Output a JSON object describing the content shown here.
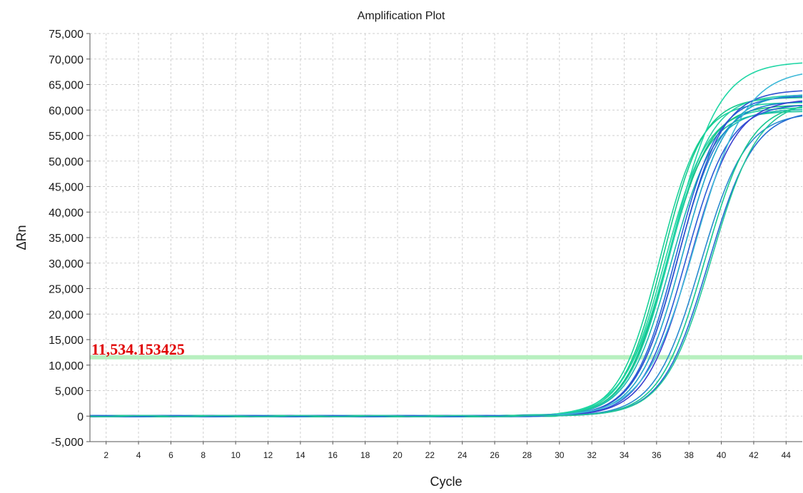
{
  "chart_data": {
    "type": "line",
    "title": "Amplification Plot",
    "xlabel": "Cycle",
    "ylabel": "ΔRn",
    "xlim": [
      1,
      45
    ],
    "ylim": [
      -5000,
      75000
    ],
    "x_ticks": [
      2,
      4,
      6,
      8,
      10,
      12,
      14,
      16,
      18,
      20,
      22,
      24,
      26,
      28,
      30,
      32,
      34,
      36,
      38,
      40,
      42,
      44
    ],
    "x_tick_labels": [
      "2",
      "4",
      "6",
      "8",
      "10",
      "12",
      "14",
      "16",
      "18",
      "20",
      "22",
      "24",
      "26",
      "28",
      "30",
      "32",
      "34",
      "36",
      "38",
      "40",
      "42",
      "44"
    ],
    "y_ticks": [
      -5000,
      0,
      5000,
      10000,
      15000,
      20000,
      25000,
      30000,
      35000,
      40000,
      45000,
      50000,
      55000,
      60000,
      65000,
      70000,
      75000
    ],
    "y_tick_labels": [
      "-5,000",
      "0",
      "5,000",
      "10,000",
      "15,000",
      "20,000",
      "25,000",
      "30,000",
      "35,000",
      "40,000",
      "45,000",
      "50,000",
      "55,000",
      "60,000",
      "65,000",
      "70,000",
      "75,000"
    ],
    "grid": true,
    "threshold": {
      "value": 11534.153425,
      "label": "11,534.153425",
      "color": "#b8f0c0",
      "label_color": "#e00000"
    },
    "curve_model": "sigmoid ΔRn = plateau / (1 + exp(-(cycle - midpoint) / slope))",
    "series": [
      {
        "midpoint": 36.2,
        "plateau": 61500,
        "slope": 1.25,
        "color": "#1ad29a"
      },
      {
        "midpoint": 36.4,
        "plateau": 62500,
        "slope": 1.25,
        "color": "#12c98c"
      },
      {
        "midpoint": 36.5,
        "plateau": 60500,
        "slope": 1.3,
        "color": "#22d4a0"
      },
      {
        "midpoint": 36.6,
        "plateau": 59800,
        "slope": 1.28,
        "color": "#14c29a"
      },
      {
        "midpoint": 36.7,
        "plateau": 61000,
        "slope": 1.3,
        "color": "#0fbf7e"
      },
      {
        "midpoint": 36.8,
        "plateau": 63000,
        "slope": 1.3,
        "color": "#28cfa8"
      },
      {
        "midpoint": 36.9,
        "plateau": 60200,
        "slope": 1.32,
        "color": "#1ab8b0"
      },
      {
        "midpoint": 37.0,
        "plateau": 69500,
        "slope": 1.45,
        "color": "#1fd6a5"
      },
      {
        "midpoint": 37.2,
        "plateau": 62800,
        "slope": 1.3,
        "color": "#2a62d8"
      },
      {
        "midpoint": 37.3,
        "plateau": 61800,
        "slope": 1.32,
        "color": "#1e7fd0"
      },
      {
        "midpoint": 37.4,
        "plateau": 64000,
        "slope": 1.35,
        "color": "#2f4fcf"
      },
      {
        "midpoint": 37.6,
        "plateau": 63200,
        "slope": 1.35,
        "color": "#1fa6c8"
      },
      {
        "midpoint": 37.8,
        "plateau": 61200,
        "slope": 1.35,
        "color": "#2c5cd6"
      },
      {
        "midpoint": 38.1,
        "plateau": 62200,
        "slope": 1.38,
        "color": "#3a3fcf"
      },
      {
        "midpoint": 38.4,
        "plateau": 68000,
        "slope": 1.55,
        "color": "#3cb8d8"
      },
      {
        "midpoint": 38.7,
        "plateau": 59500,
        "slope": 1.4,
        "color": "#2a8bd0"
      },
      {
        "midpoint": 39.0,
        "plateau": 61500,
        "slope": 1.4,
        "color": "#18c890"
      },
      {
        "midpoint": 39.2,
        "plateau": 60000,
        "slope": 1.42,
        "color": "#2569d2"
      },
      {
        "midpoint": 39.4,
        "plateau": 62000,
        "slope": 1.45,
        "color": "#23c79a"
      }
    ]
  }
}
